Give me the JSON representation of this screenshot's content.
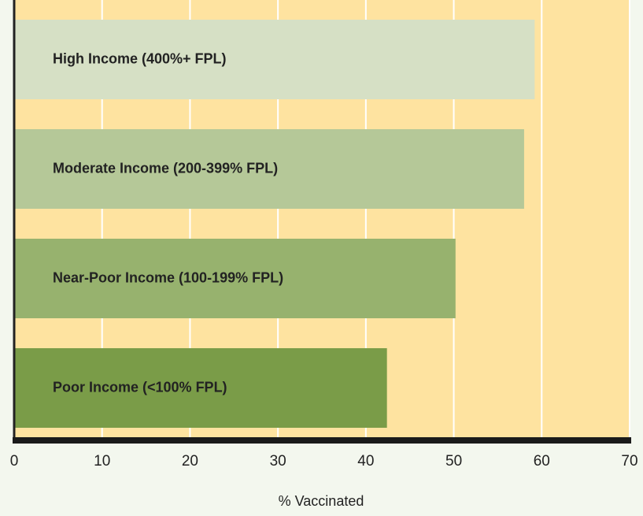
{
  "chart_data": {
    "type": "bar",
    "orientation": "horizontal",
    "categories": [
      "High Income (400%+ FPL)",
      "Moderate Income (200-399% FPL)",
      "Near-Poor Income (100-199% FPL)",
      "Poor Income (<100% FPL)"
    ],
    "values": [
      59.2,
      58.0,
      50.2,
      42.4
    ],
    "colors": [
      "#d6e0c5",
      "#b5c898",
      "#97b26e",
      "#7a9c48"
    ],
    "xlim": [
      0,
      70
    ],
    "xticks": [
      0,
      10,
      20,
      30,
      40,
      50,
      60,
      70
    ],
    "xlabel": "% Vaccinated",
    "grid": true
  }
}
